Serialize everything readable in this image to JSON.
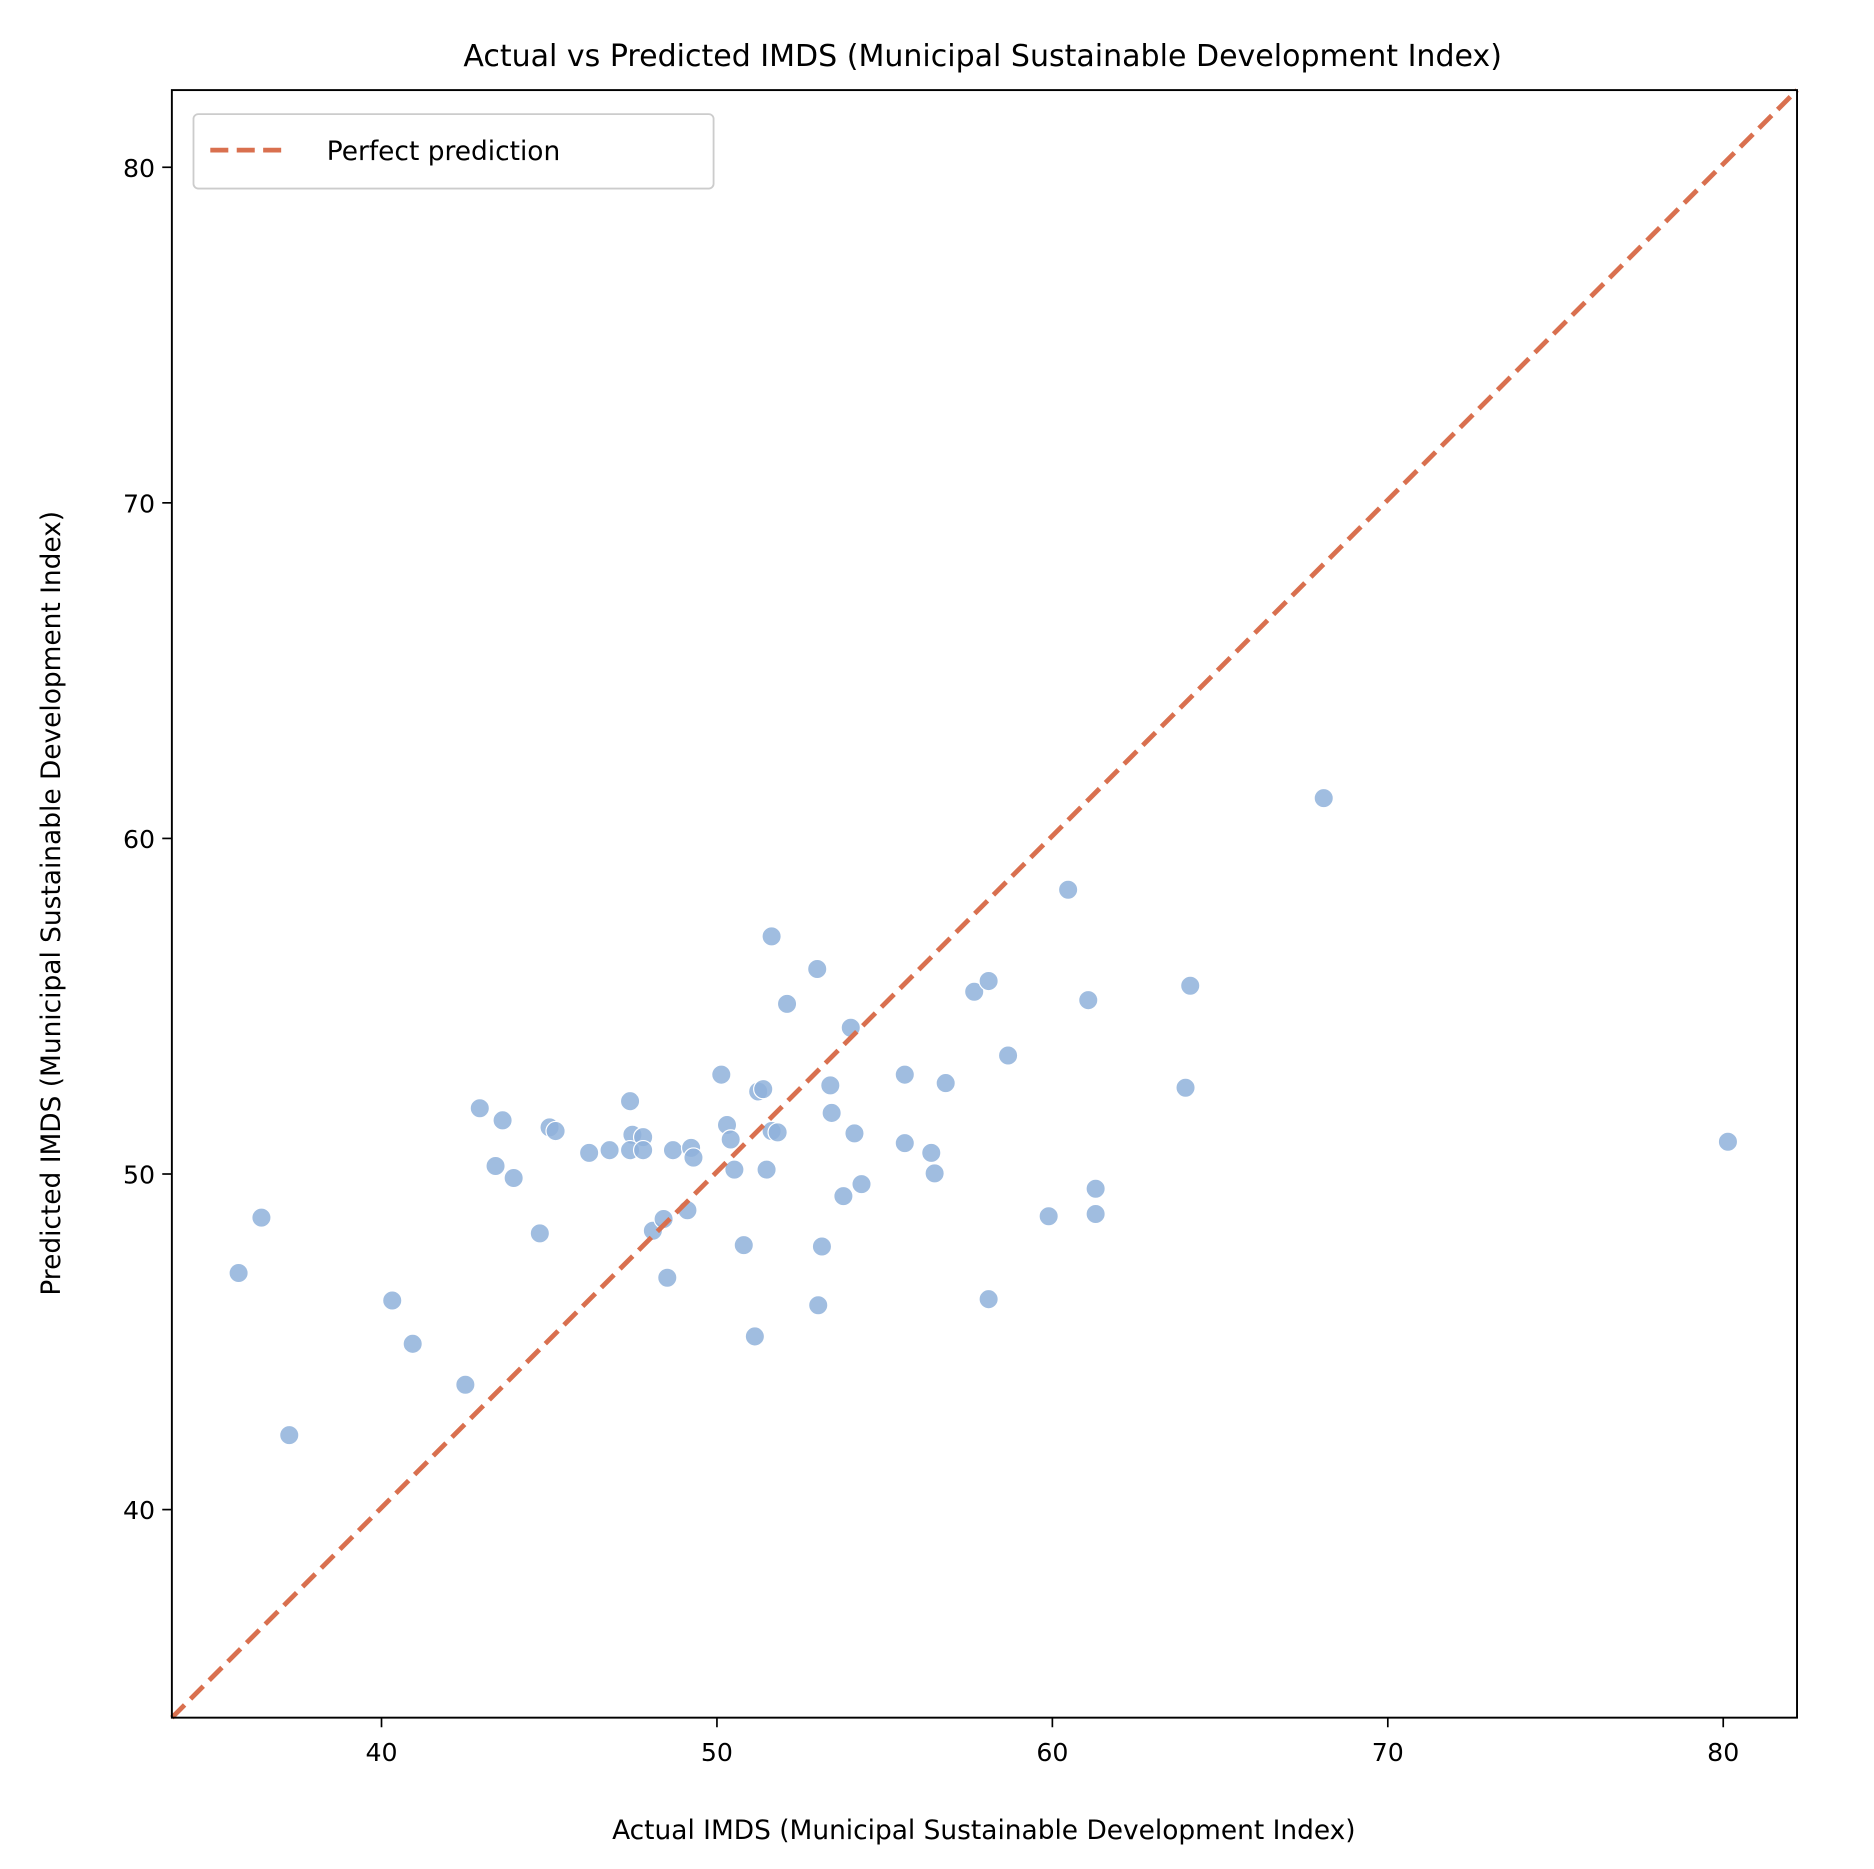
{
  "chart_data": {
    "type": "scatter",
    "title": "Actual vs Predicted IMDS (Municipal Sustainable Development Index)",
    "xlabel": "Actual IMDS (Municipal Sustainable Development Index)",
    "ylabel": "Predicted IMDS (Municipal Sustainable Development Index)",
    "xlim": [
      33.75,
      82.2
    ],
    "ylim": [
      33.8,
      82.3
    ],
    "xticks": [
      40,
      50,
      60,
      70,
      80
    ],
    "yticks": [
      40,
      50,
      60,
      70,
      80
    ],
    "grid": false,
    "legend": {
      "placement": "top-left",
      "entries": [
        "Perfect prediction"
      ]
    },
    "colors": {
      "points": "#8fb2db",
      "reference_line": "#d9704f"
    },
    "reference_line": {
      "name": "Perfect prediction",
      "style": "dashed",
      "equation": "y = x"
    },
    "points": [
      [
        35.74,
        47.05
      ],
      [
        36.42,
        48.7
      ],
      [
        37.25,
        42.22
      ],
      [
        40.32,
        46.23
      ],
      [
        40.93,
        44.94
      ],
      [
        42.5,
        43.72
      ],
      [
        42.93,
        51.96
      ],
      [
        43.61,
        51.6
      ],
      [
        43.4,
        50.24
      ],
      [
        43.94,
        49.88
      ],
      [
        44.72,
        48.23
      ],
      [
        45.01,
        51.39
      ],
      [
        45.19,
        51.28
      ],
      [
        46.19,
        50.63
      ],
      [
        46.8,
        50.71
      ],
      [
        47.41,
        52.17
      ],
      [
        47.48,
        51.17
      ],
      [
        47.8,
        51.1
      ],
      [
        47.41,
        50.71
      ],
      [
        47.8,
        50.71
      ],
      [
        48.09,
        48.31
      ],
      [
        48.41,
        48.66
      ],
      [
        48.52,
        46.91
      ],
      [
        48.69,
        50.71
      ],
      [
        49.12,
        48.92
      ],
      [
        49.23,
        50.78
      ],
      [
        49.3,
        50.49
      ],
      [
        50.13,
        52.96
      ],
      [
        50.3,
        51.46
      ],
      [
        50.41,
        51.03
      ],
      [
        50.52,
        50.13
      ],
      [
        50.8,
        47.88
      ],
      [
        51.13,
        45.16
      ],
      [
        51.23,
        52.46
      ],
      [
        51.38,
        52.53
      ],
      [
        51.48,
        50.13
      ],
      [
        51.63,
        57.08
      ],
      [
        51.63,
        51.28
      ],
      [
        51.81,
        51.24
      ],
      [
        52.09,
        55.07
      ],
      [
        52.99,
        56.11
      ],
      [
        53.02,
        46.09
      ],
      [
        53.13,
        47.84
      ],
      [
        53.38,
        52.64
      ],
      [
        53.42,
        51.82
      ],
      [
        53.77,
        49.34
      ],
      [
        53.99,
        54.36
      ],
      [
        54.1,
        51.21
      ],
      [
        54.31,
        49.7
      ],
      [
        55.6,
        52.96
      ],
      [
        55.6,
        50.92
      ],
      [
        56.39,
        50.63
      ],
      [
        56.49,
        50.02
      ],
      [
        56.82,
        52.71
      ],
      [
        57.67,
        55.43
      ],
      [
        58.1,
        55.75
      ],
      [
        58.1,
        46.27
      ],
      [
        58.68,
        53.53
      ],
      [
        59.89,
        48.74
      ],
      [
        60.47,
        58.47
      ],
      [
        61.07,
        55.18
      ],
      [
        61.29,
        49.56
      ],
      [
        61.29,
        48.81
      ],
      [
        63.97,
        52.57
      ],
      [
        64.11,
        55.61
      ],
      [
        68.09,
        61.2
      ],
      [
        80.14,
        50.96
      ]
    ]
  }
}
